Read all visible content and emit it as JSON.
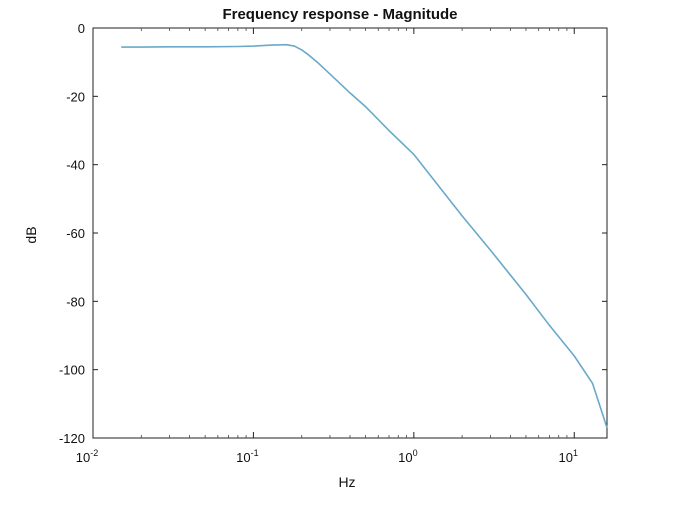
{
  "chart_data": {
    "type": "line",
    "title": "Frequency response - Magnitude",
    "xlabel": "Hz",
    "ylabel": "dB",
    "xscale": "log",
    "xlim": [
      0.01,
      16
    ],
    "ylim": [
      -120,
      0
    ],
    "xticks": [
      {
        "value": 0.01,
        "base": "10",
        "exp": "-2"
      },
      {
        "value": 0.1,
        "base": "10",
        "exp": "-1"
      },
      {
        "value": 1,
        "base": "10",
        "exp": "0"
      },
      {
        "value": 10,
        "base": "10",
        "exp": "1"
      }
    ],
    "yticks": [
      0,
      -20,
      -40,
      -60,
      -80,
      -100,
      -120
    ],
    "grid": false,
    "line_color": "#6aa9c9",
    "series": [
      {
        "x": [
          0.015,
          0.02,
          0.03,
          0.05,
          0.08,
          0.1,
          0.13,
          0.16,
          0.18,
          0.2,
          0.22,
          0.25,
          0.3,
          0.4,
          0.5,
          0.7,
          1,
          2,
          3,
          5,
          7,
          10,
          13,
          16
        ],
        "values": [
          -5.6,
          -5.6,
          -5.5,
          -5.5,
          -5.4,
          -5.3,
          -5.0,
          -4.9,
          -5.3,
          -6.4,
          -7.8,
          -10,
          -13.5,
          -19,
          -23,
          -30,
          -37,
          -55,
          -65,
          -78,
          -87,
          -96,
          -104,
          -117
        ]
      }
    ]
  }
}
